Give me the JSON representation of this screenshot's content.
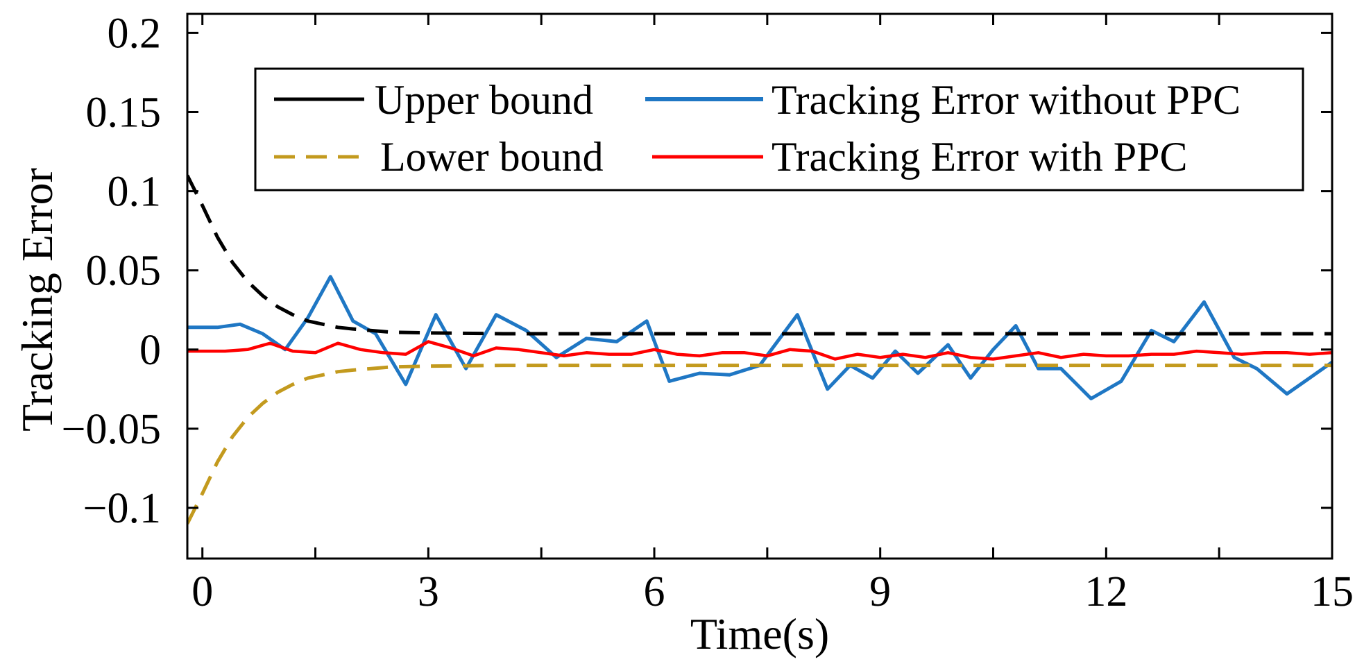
{
  "chart_data": {
    "type": "line",
    "title": "",
    "xlabel": "Time(s)",
    "ylabel": "Tracking  Error",
    "xlim": [
      -0.2,
      15
    ],
    "ylim": [
      -0.132,
      0.212
    ],
    "xticks": [
      0,
      3,
      6,
      9,
      12,
      15
    ],
    "xtick_labels": [
      "0",
      "3",
      "6",
      "9",
      "12",
      "15"
    ],
    "xticks_minor": [
      1.5,
      4.5,
      7.5,
      10.5,
      13.5
    ],
    "yticks": [
      0.2,
      0.15,
      0.1,
      0.05,
      0,
      -0.05,
      -0.1
    ],
    "ytick_labels": [
      "0.2",
      "0.15",
      "0.1",
      "0.05",
      "0",
      "−0.05",
      "−0.1"
    ],
    "grid": false,
    "legend_position": "top-right",
    "series": [
      {
        "name": "Upper bound",
        "color": "#000000",
        "style": "dashed",
        "x": [
          -0.2,
          0,
          0.2,
          0.4,
          0.6,
          0.8,
          1.0,
          1.2,
          1.4,
          1.6,
          1.8,
          2.0,
          2.5,
          3.0,
          4,
          6,
          8,
          10,
          12,
          15
        ],
        "y": [
          0.11,
          0.091,
          0.071,
          0.055,
          0.043,
          0.034,
          0.027,
          0.022,
          0.018,
          0.016,
          0.014,
          0.013,
          0.011,
          0.0105,
          0.01,
          0.01,
          0.01,
          0.01,
          0.01,
          0.01
        ]
      },
      {
        "name": "Lower bound",
        "color": "#c39a1e",
        "style": "dashed",
        "x": [
          -0.2,
          0,
          0.2,
          0.4,
          0.6,
          0.8,
          1.0,
          1.2,
          1.4,
          1.6,
          1.8,
          2.0,
          2.5,
          3.0,
          4,
          6,
          8,
          10,
          12,
          15
        ],
        "y": [
          -0.11,
          -0.091,
          -0.071,
          -0.055,
          -0.043,
          -0.034,
          -0.027,
          -0.022,
          -0.018,
          -0.016,
          -0.014,
          -0.013,
          -0.011,
          -0.0105,
          -0.01,
          -0.01,
          -0.01,
          -0.01,
          -0.01,
          -0.01
        ]
      },
      {
        "name": "Tracking Error without PPC",
        "color": "#1f77c4",
        "style": "solid",
        "x": [
          -0.2,
          0.2,
          0.5,
          0.8,
          1.1,
          1.4,
          1.7,
          2.0,
          2.3,
          2.7,
          3.1,
          3.5,
          3.9,
          4.3,
          4.7,
          5.1,
          5.5,
          5.9,
          6.2,
          6.6,
          7.0,
          7.4,
          7.9,
          8.3,
          8.6,
          8.9,
          9.2,
          9.5,
          9.9,
          10.2,
          10.5,
          10.8,
          11.1,
          11.4,
          11.8,
          12.2,
          12.6,
          12.9,
          13.3,
          13.7,
          14.0,
          14.4,
          14.7,
          15.0
        ],
        "y": [
          0.014,
          0.014,
          0.016,
          0.01,
          0.0,
          0.02,
          0.046,
          0.018,
          0.01,
          -0.022,
          0.022,
          -0.012,
          0.022,
          0.012,
          -0.005,
          0.007,
          0.005,
          0.018,
          -0.02,
          -0.015,
          -0.016,
          -0.01,
          0.022,
          -0.025,
          -0.01,
          -0.018,
          -0.001,
          -0.015,
          0.003,
          -0.018,
          0.0,
          0.015,
          -0.012,
          -0.012,
          -0.031,
          -0.02,
          0.012,
          0.005,
          0.03,
          -0.005,
          -0.012,
          -0.028,
          -0.018,
          -0.008
        ]
      },
      {
        "name": "Tracking Error with PPC",
        "color": "#ff0000",
        "style": "solid",
        "x": [
          -0.2,
          0.3,
          0.6,
          0.9,
          1.2,
          1.5,
          1.8,
          2.1,
          2.4,
          2.7,
          3.0,
          3.3,
          3.6,
          3.9,
          4.2,
          4.5,
          4.8,
          5.1,
          5.4,
          5.7,
          6.0,
          6.3,
          6.6,
          6.9,
          7.2,
          7.5,
          7.8,
          8.1,
          8.4,
          8.7,
          9.0,
          9.3,
          9.6,
          9.9,
          10.2,
          10.5,
          10.8,
          11.1,
          11.4,
          11.7,
          12.0,
          12.3,
          12.6,
          12.9,
          13.2,
          13.5,
          13.8,
          14.1,
          14.4,
          14.7,
          15.0
        ],
        "y": [
          -0.001,
          -0.001,
          0.0,
          0.004,
          -0.001,
          -0.002,
          0.004,
          0.0,
          -0.002,
          -0.003,
          0.005,
          0.001,
          -0.004,
          0.001,
          0.0,
          -0.002,
          -0.004,
          -0.002,
          -0.003,
          -0.003,
          0.0,
          -0.003,
          -0.004,
          -0.002,
          -0.002,
          -0.004,
          0.0,
          -0.001,
          -0.006,
          -0.003,
          -0.005,
          -0.003,
          -0.005,
          -0.002,
          -0.005,
          -0.006,
          -0.004,
          -0.002,
          -0.005,
          -0.003,
          -0.004,
          -0.004,
          -0.003,
          -0.003,
          -0.001,
          -0.002,
          -0.003,
          -0.002,
          -0.002,
          -0.003,
          -0.002
        ]
      }
    ]
  }
}
